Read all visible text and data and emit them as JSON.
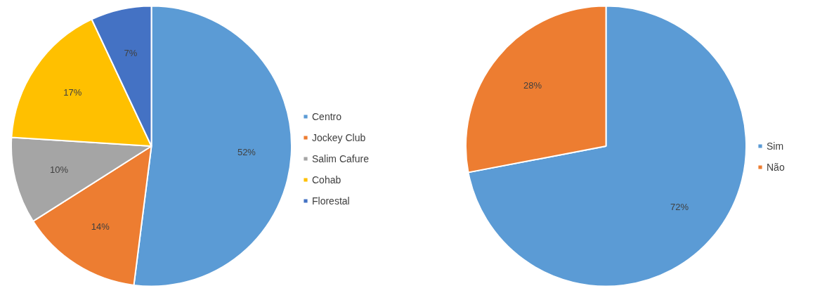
{
  "chart_data": [
    {
      "type": "pie",
      "categories": [
        "Centro",
        "Jockey Club",
        "Salim Cafure",
        "Cohab",
        "Florestal"
      ],
      "values": [
        52,
        14,
        10,
        17,
        7
      ],
      "colors": [
        "#5b9bd5",
        "#ed7d31",
        "#a5a5a5",
        "#ffc000",
        "#4472c4"
      ],
      "value_labels": [
        "52%",
        "14%",
        "10%",
        "17%",
        "7%"
      ],
      "legend": "right"
    },
    {
      "type": "pie",
      "categories": [
        "Sim",
        "Não"
      ],
      "values": [
        72,
        28
      ],
      "colors": [
        "#5b9bd5",
        "#ed7d31"
      ],
      "value_labels": [
        "72%",
        "28%"
      ],
      "legend": "right"
    }
  ]
}
